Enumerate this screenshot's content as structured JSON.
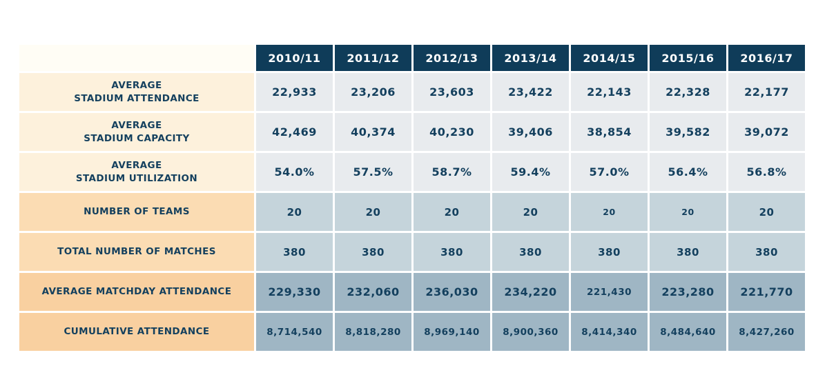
{
  "chart_data": {
    "type": "table",
    "columns": [
      "2010/11",
      "2011/12",
      "2012/13",
      "2013/14",
      "2014/15",
      "2015/16",
      "2016/17"
    ],
    "rows": [
      {
        "id": "average-stadium-attendance",
        "label_lines": [
          "AVERAGE",
          "STADIUM ATTENDANCE"
        ],
        "group": "cream",
        "values": [
          "22,933",
          "23,206",
          "23,603",
          "23,422",
          "22,143",
          "22,328",
          "22,177"
        ]
      },
      {
        "id": "average-stadium-capacity",
        "label_lines": [
          "AVERAGE",
          "STADIUM CAPACITY"
        ],
        "group": "cream",
        "values": [
          "42,469",
          "40,374",
          "40,230",
          "39,406",
          "38,854",
          "39,582",
          "39,072"
        ]
      },
      {
        "id": "average-stadium-utilization",
        "label_lines": [
          "AVERAGE",
          "STADIUM UTILIZATION"
        ],
        "group": "cream",
        "values": [
          "54.0%",
          "57.5%",
          "58.7%",
          "59.4%",
          "57.0%",
          "56.4%",
          "56.8%"
        ]
      },
      {
        "id": "number-of-teams",
        "label_lines": [
          "NUMBER OF TEAMS"
        ],
        "group": "peach",
        "values": [
          "20",
          "20",
          "20",
          "20",
          "20",
          "20",
          "20"
        ],
        "small_cols": [
          4,
          5
        ]
      },
      {
        "id": "total-number-of-matches",
        "label_lines": [
          "TOTAL NUMBER OF MATCHES"
        ],
        "group": "peach",
        "values": [
          "380",
          "380",
          "380",
          "380",
          "380",
          "380",
          "380"
        ]
      },
      {
        "id": "average-matchday-attendance",
        "label_lines": [
          "AVERAGE MATCHDAY ATTENDANCE"
        ],
        "group": "orange",
        "values": [
          "229,330",
          "232,060",
          "236,030",
          "234,220",
          "221,430",
          "223,280",
          "221,770"
        ],
        "small_cols": [
          4
        ]
      },
      {
        "id": "cumulative-attendance",
        "label_lines": [
          "CUMULATIVE ATTENDANCE"
        ],
        "group": "orange",
        "compact": true,
        "values": [
          "8,714,540",
          "8,818,280",
          "8,969,140",
          "8,900,360",
          "8,414,340",
          "8,484,640",
          "8,427,260"
        ]
      }
    ]
  },
  "colors": {
    "header_bg": "#0f3c59",
    "text_navy": "#14405e",
    "header_text": "#ffffff",
    "corner_bg": "#fffdf5",
    "label_cream": "#fdf1dc",
    "label_peach": "#fbdcb3",
    "label_orange": "#f9d0a0",
    "cell_gray": "#e8ebee",
    "cell_light_blue": "#c5d4db",
    "cell_medium_blue": "#9fb6c4"
  }
}
